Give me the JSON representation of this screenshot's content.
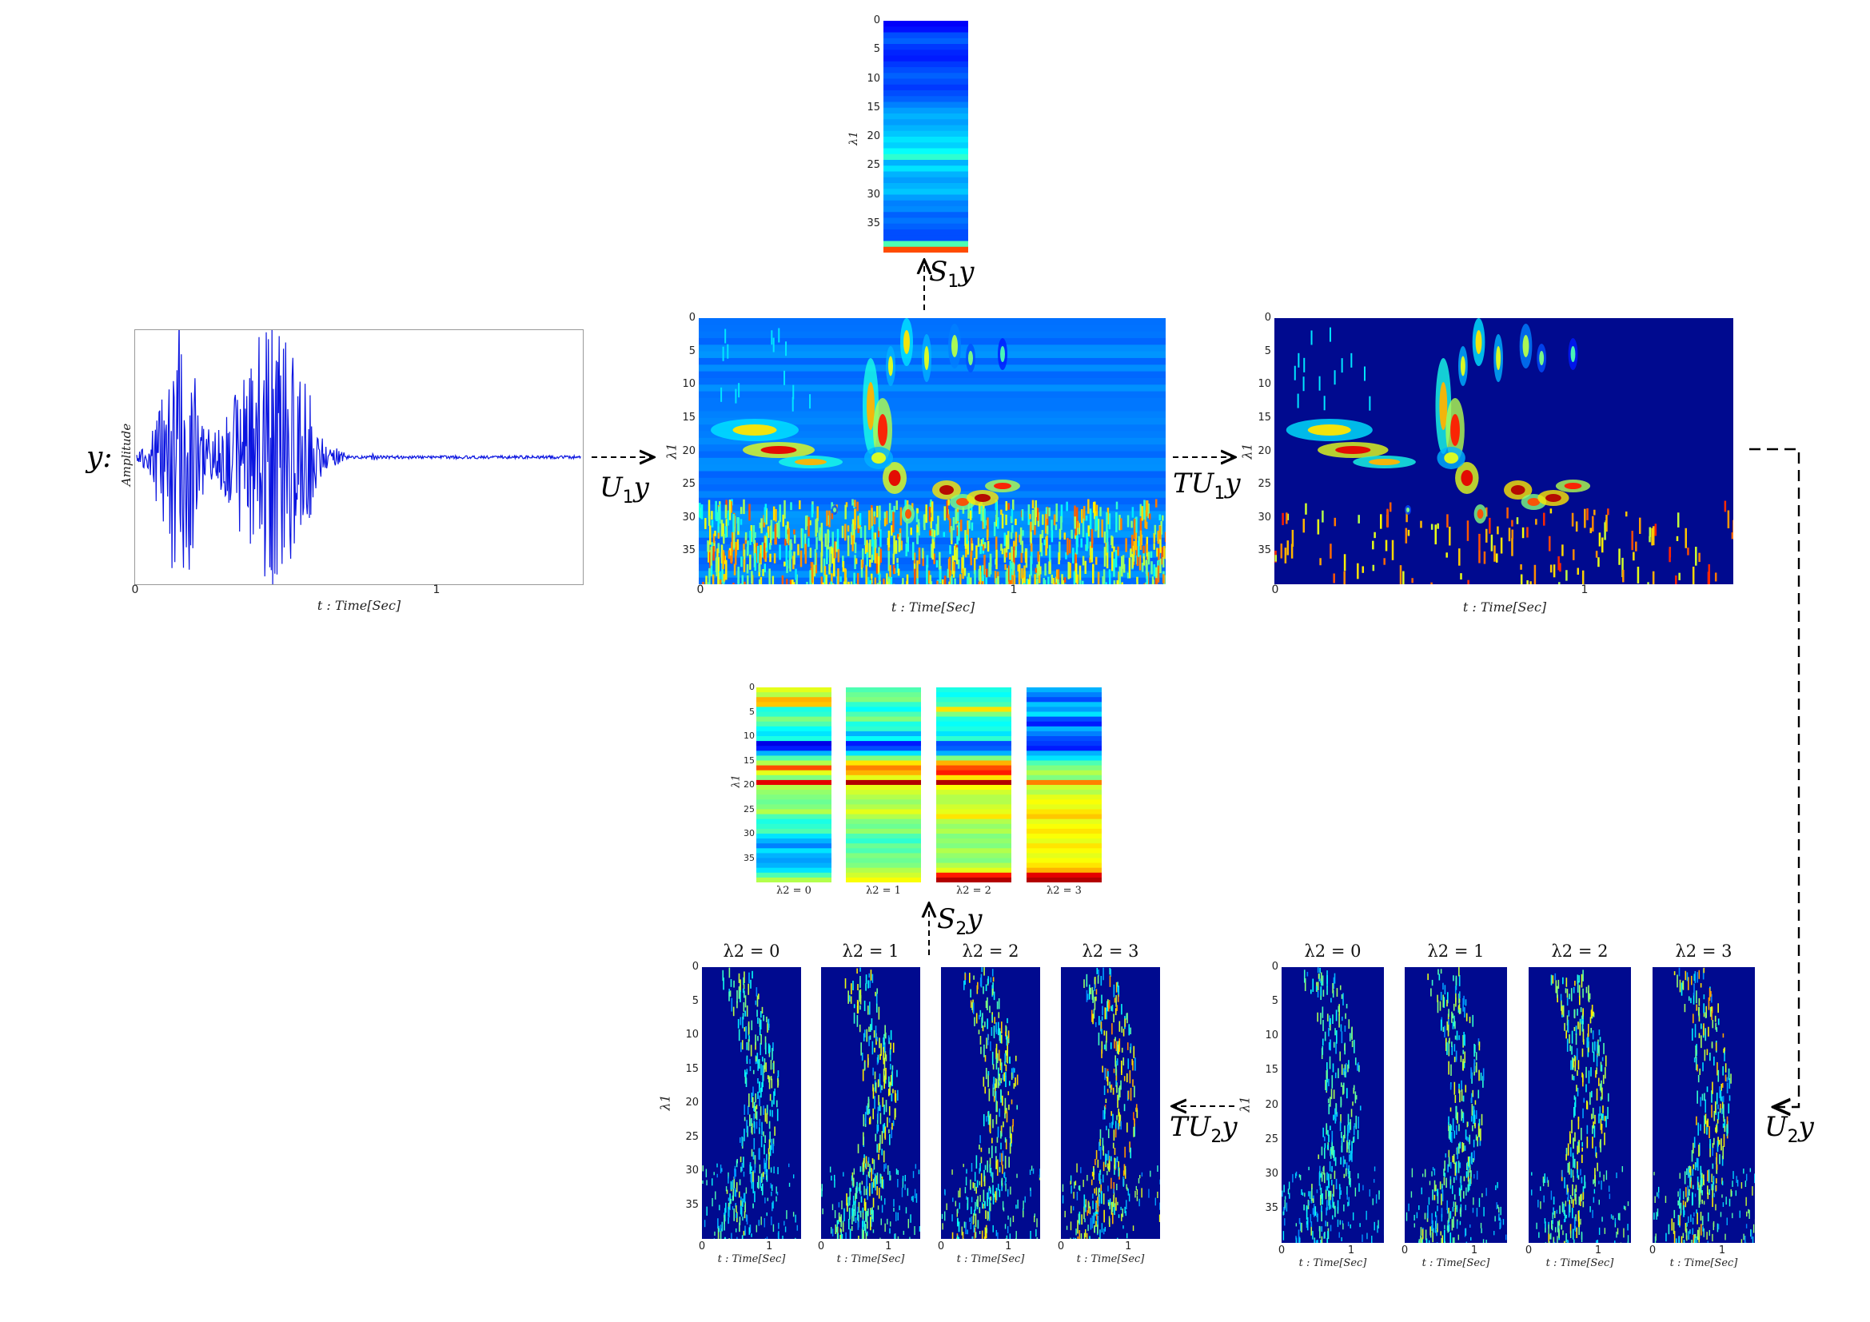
{
  "input": {
    "symbol": "y:",
    "ylabel": "Amplitude",
    "xlabel": "t : Time[Sec]",
    "xticks": [
      "0",
      "1"
    ]
  },
  "operators": {
    "u1": "U",
    "u1_sub": "1",
    "s1": "S",
    "s1_sub": "1",
    "tu1": "TU",
    "tu1_sub": "1",
    "u2": "U",
    "u2_sub": "2",
    "tu2": "TU",
    "tu2_sub": "2",
    "s2": "S",
    "s2_sub": "2",
    "var": "y"
  },
  "spectrogram_axis": {
    "ylabel": "λ1",
    "yticks": [
      "0",
      "5",
      "10",
      "15",
      "20",
      "25",
      "30",
      "35"
    ],
    "xlabel": "t : Time[Sec]",
    "xticks": [
      "0",
      "1"
    ]
  },
  "s2_columns": [
    "λ2 = 0",
    "λ2 = 1",
    "λ2 = 2",
    "λ2 = 3"
  ],
  "small_panel_titles": [
    "λ2 = 0",
    "λ2 = 1",
    "λ2 = 2",
    "λ2 = 3"
  ],
  "small_panel_xlabel": "t : Time[Sec]",
  "small_panel_xticks": [
    "0",
    "1"
  ],
  "colors": {
    "deep_blue": "#000a8f",
    "blue": "#0030e0",
    "cyan": "#20c8f0",
    "yellow": "#f0e020",
    "red": "#d01010",
    "waveform": "#0a14e0"
  }
}
